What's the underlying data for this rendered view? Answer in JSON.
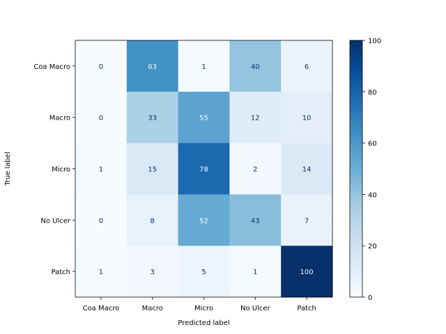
{
  "chart_data": {
    "type": "heatmap",
    "title": "",
    "xlabel": "Predicted label",
    "ylabel": "True label",
    "x_categories": [
      "Coa Macro",
      "Macro",
      "Micro",
      "No Ulcer",
      "Patch"
    ],
    "y_categories": [
      "Coa Macro",
      "Macro",
      "Micro",
      "No Ulcer",
      "Patch"
    ],
    "values": [
      [
        0,
        63,
        1,
        40,
        6
      ],
      [
        0,
        33,
        55,
        12,
        10
      ],
      [
        1,
        15,
        78,
        2,
        14
      ],
      [
        0,
        8,
        52,
        43,
        7
      ],
      [
        1,
        3,
        5,
        1,
        100
      ]
    ],
    "colormap": "Blues",
    "colorbar": {
      "range": [
        0,
        100
      ],
      "ticks": [
        0,
        20,
        40,
        60,
        80,
        100
      ]
    },
    "text_colors": {
      "dark": "#08306b",
      "light": "#f7fbff"
    }
  }
}
